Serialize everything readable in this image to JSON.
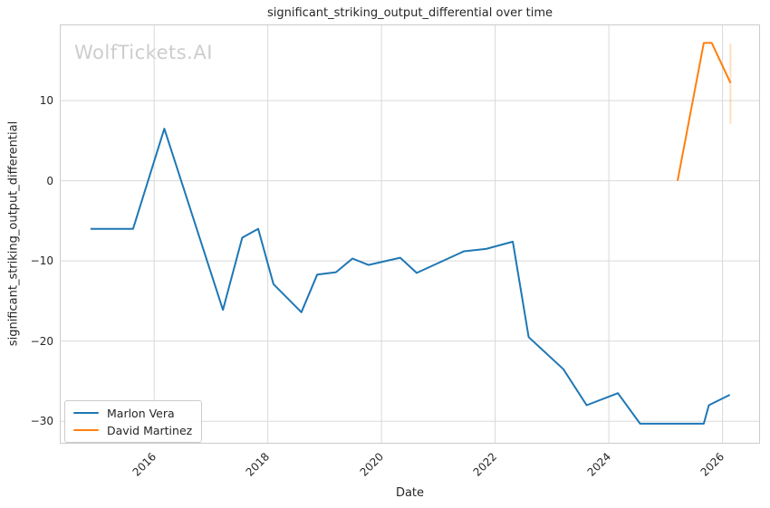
{
  "watermark": {
    "text": "WolfTickets.AI"
  },
  "chart_data": {
    "type": "line",
    "title": "significant_striking_output_differential over time",
    "xlabel": "Date",
    "ylabel": "significant_striking_output_differential",
    "grid": true,
    "legend_position": "lower left",
    "xlim": [
      2014.34,
      2026.66
    ],
    "ylim": [
      -32.8,
      19.5
    ],
    "xticks": [
      2016,
      2018,
      2020,
      2022,
      2024,
      2026
    ],
    "yticks": [
      10,
      0,
      -10,
      -20,
      -30
    ],
    "series": [
      {
        "name": "Marlon Vera",
        "color": "#1f77b4",
        "points": [
          [
            2014.88,
            -6.0
          ],
          [
            2015.63,
            -6.0
          ],
          [
            2016.18,
            6.5
          ],
          [
            2017.21,
            -16.1
          ],
          [
            2017.55,
            -7.1
          ],
          [
            2017.83,
            -6.0
          ],
          [
            2018.1,
            -12.9
          ],
          [
            2018.59,
            -16.4
          ],
          [
            2018.87,
            -11.7
          ],
          [
            2019.2,
            -11.4
          ],
          [
            2019.49,
            -9.7
          ],
          [
            2019.77,
            -10.5
          ],
          [
            2020.33,
            -9.6
          ],
          [
            2020.62,
            -11.5
          ],
          [
            2021.45,
            -8.8
          ],
          [
            2021.84,
            -8.5
          ],
          [
            2022.31,
            -7.6
          ],
          [
            2022.59,
            -19.5
          ],
          [
            2023.2,
            -23.5
          ],
          [
            2023.61,
            -28.0
          ],
          [
            2024.16,
            -26.5
          ],
          [
            2024.55,
            -30.3
          ],
          [
            2025.67,
            -30.3
          ],
          [
            2025.76,
            -28.0
          ],
          [
            2026.13,
            -26.7
          ]
        ]
      },
      {
        "name": "David Martinez",
        "color": "#ff7f0e",
        "points": [
          [
            2025.21,
            0.0
          ],
          [
            2025.67,
            17.2
          ],
          [
            2025.81,
            17.2
          ],
          [
            2026.14,
            12.2
          ]
        ],
        "error_bar": {
          "x": 2026.14,
          "y_low": 7.1,
          "y_high": 17.1
        }
      }
    ]
  },
  "style": {
    "grid_color": "#d9d9d9",
    "spine_color": "#cccccc",
    "text_color": "#262626"
  }
}
